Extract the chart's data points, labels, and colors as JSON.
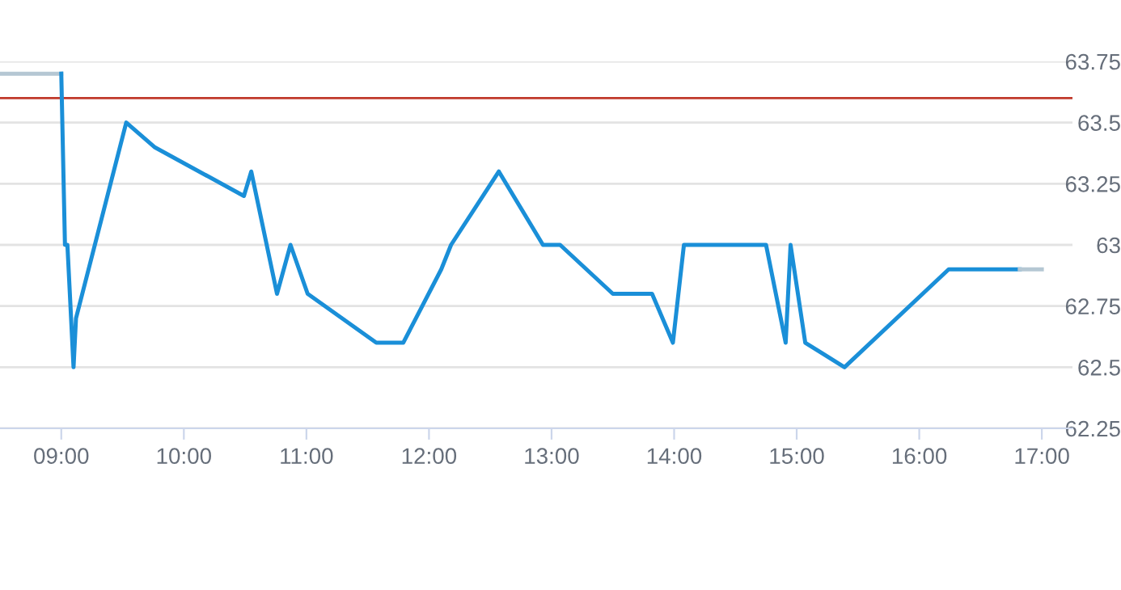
{
  "chart_data": {
    "type": "line",
    "series": [
      {
        "color": "#b5c7d3",
        "x": [
          8.5,
          9.0
        ],
        "values": [
          63.7,
          63.7
        ]
      },
      {
        "color": "#1a8fd8",
        "x": [
          9.0,
          9.03,
          9.05,
          9.1,
          9.12,
          9.53,
          9.76,
          10.49,
          10.55,
          10.76,
          10.87,
          11.01,
          11.57,
          11.79,
          12.1,
          12.18,
          12.57,
          12.93,
          13.07,
          13.5,
          13.82,
          13.99,
          14.08,
          14.75,
          14.91,
          14.95,
          15.07,
          15.39,
          16.24,
          16.82
        ],
        "values": [
          63.7,
          63.0,
          63.0,
          62.5,
          62.7,
          63.5,
          63.4,
          63.2,
          63.3,
          62.8,
          63.0,
          62.8,
          62.6,
          62.6,
          62.9,
          63.0,
          63.3,
          63.0,
          63.0,
          62.8,
          62.8,
          62.6,
          63.0,
          63.0,
          62.6,
          63.0,
          62.6,
          62.5,
          62.9,
          62.9
        ]
      },
      {
        "color": "#b5c7d3",
        "x": [
          16.82,
          17.0
        ],
        "values": [
          62.9,
          62.9
        ]
      }
    ],
    "xlim": [
      8.5,
      17.25
    ],
    "xticks": [
      {
        "value": 9,
        "label": "09:00"
      },
      {
        "value": 10,
        "label": "10:00"
      },
      {
        "value": 11,
        "label": "11:00"
      },
      {
        "value": 12,
        "label": "12:00"
      },
      {
        "value": 13,
        "label": "13:00"
      },
      {
        "value": 14,
        "label": "14:00"
      },
      {
        "value": 15,
        "label": "15:00"
      },
      {
        "value": 16,
        "label": "16:00"
      },
      {
        "value": 17,
        "label": "17:00"
      }
    ],
    "ylim": [
      62.25,
      63.75
    ],
    "yticks": [
      62.25,
      62.5,
      62.75,
      63,
      63.25,
      63.5,
      63.75
    ],
    "ref_lines": [
      {
        "axis": "y",
        "value": 63.6,
        "color": "#c0392b"
      }
    ],
    "grid": "y",
    "marker": "none",
    "line_style": "solid"
  }
}
